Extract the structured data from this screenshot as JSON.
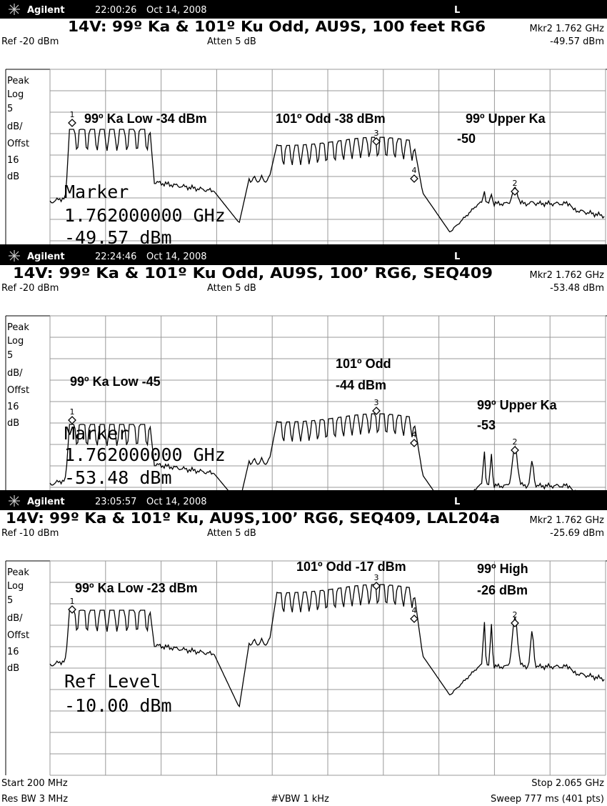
{
  "panels": [
    {
      "header": {
        "brand": "Agilent",
        "time": "22:00:26",
        "date": "Oct 14, 2008",
        "mode": "L"
      },
      "title": "14V: 99º Ka & 101º Ku Odd, AU9S, 100 feet RG6",
      "marker_readout": "Mkr2  1.762 GHz",
      "ref": "Ref -20 dBm",
      "atten": "Atten 5 dB",
      "marker_level": "-49.57 dBm",
      "scale_labels": [
        "Peak",
        "Log",
        "5",
        "dB/",
        "Offst",
        "16",
        "dB"
      ],
      "annotations": [
        "99º Ka Low -34 dBm",
        "101º Odd -38 dBm",
        "99º Upper Ka",
        "-50"
      ],
      "marker_ids": [
        "1",
        "3",
        "4",
        "2"
      ],
      "overlay": [
        "Marker",
        "1.762000000 GHz",
        "-49.57 dBm"
      ]
    },
    {
      "header": {
        "brand": "Agilent",
        "time": "22:24:46",
        "date": "Oct 14, 2008",
        "mode": "L"
      },
      "title": "14V: 99º Ka & 101º Ku Odd, AU9S, 100’ RG6,  SEQ409",
      "marker_readout": "Mkr2  1.762 GHz",
      "ref": "Ref -20 dBm",
      "atten": "Atten 5 dB",
      "marker_level": "-53.48 dBm",
      "scale_labels": [
        "Peak",
        "Log",
        "5",
        "dB/",
        "Offst",
        "16",
        "dB"
      ],
      "annotations": [
        "99º Ka Low -45",
        "101º Odd",
        "-44 dBm",
        "99º Upper Ka",
        "-53"
      ],
      "marker_ids": [
        "1",
        "3",
        "4",
        "2"
      ],
      "overlay": [
        "Marker",
        "1.762000000 GHz",
        "-53.48 dBm"
      ]
    },
    {
      "header": {
        "brand": "Agilent",
        "time": "23:05:57",
        "date": "Oct 14, 2008",
        "mode": "L"
      },
      "title": "14V: 99º Ka & 101º Ku, AU9S,100’ RG6, SEQ409, LAL204a",
      "marker_readout": "Mkr2  1.762 GHz",
      "ref": "Ref -10 dBm",
      "atten": "Atten 5 dB",
      "marker_level": "-25.69 dBm",
      "scale_labels": [
        "Peak",
        "Log",
        "5",
        "dB/",
        "Offst",
        "16",
        "dB"
      ],
      "annotations": [
        "101º Odd -17 dBm",
        "99º High",
        "99º Ka Low -23 dBm",
        "-26 dBm"
      ],
      "marker_ids": [
        "1",
        "3",
        "4",
        "2"
      ],
      "overlay": [
        "Ref Level",
        "-10.00 dBm"
      ]
    }
  ],
  "footer": {
    "start": "Start 200 MHz",
    "stop": "Stop 2.065 GHz",
    "res_bw": "Res BW 3 MHz",
    "vbw": "#VBW 1 kHz",
    "sweep": "Sweep 777 ms (401 pts)"
  }
}
